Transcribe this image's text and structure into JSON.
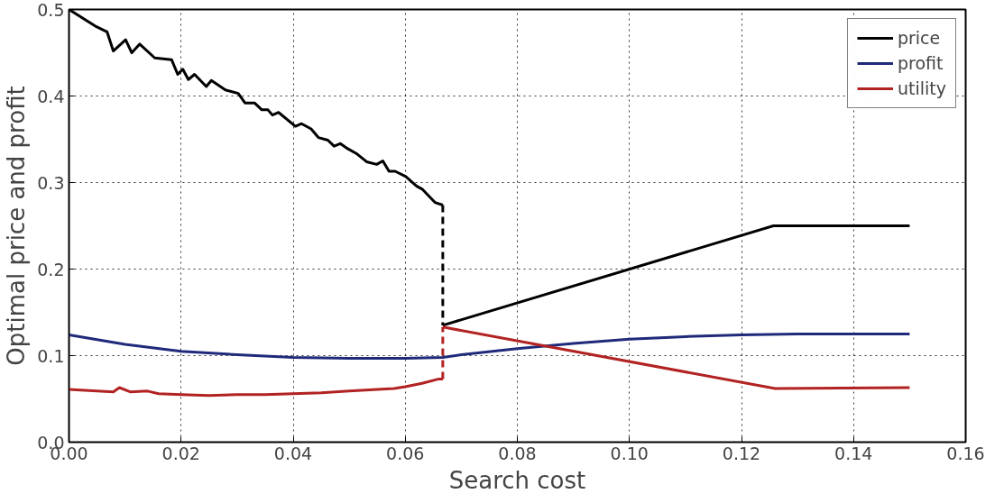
{
  "chart_data": {
    "type": "line",
    "xlabel": "Search cost",
    "ylabel": "Optimal price and profit",
    "xlim": [
      0,
      0.16
    ],
    "ylim": [
      0,
      0.5
    ],
    "xticks": [
      {
        "value": 0,
        "label": "0.00"
      },
      {
        "value": 0.02,
        "label": "0.02"
      },
      {
        "value": 0.04,
        "label": "0.04"
      },
      {
        "value": 0.06,
        "label": "0.06"
      },
      {
        "value": 0.08,
        "label": "0.08"
      },
      {
        "value": 0.1,
        "label": "0.10"
      },
      {
        "value": 0.12,
        "label": "0.12"
      },
      {
        "value": 0.14,
        "label": "0.14"
      },
      {
        "value": 0.16,
        "label": "0.16"
      }
    ],
    "yticks": [
      {
        "value": 0,
        "label": "0.0"
      },
      0.1,
      0.2,
      0.3,
      0.4,
      0.5
    ],
    "grid": true,
    "legend": "top right",
    "line_style": "solid",
    "series": [
      {
        "name": "price",
        "color": "#000000",
        "x": [
          0.0,
          0.0049,
          0.0068,
          0.0079,
          0.0101,
          0.0112,
          0.0126,
          0.0153,
          0.0183,
          0.0194,
          0.0203,
          0.0213,
          0.0224,
          0.0245,
          0.0254,
          0.0279,
          0.0302,
          0.0314,
          0.0331,
          0.0344,
          0.0355,
          0.0363,
          0.0374,
          0.0404,
          0.0415,
          0.0432,
          0.0445,
          0.0462,
          0.0473,
          0.0484,
          0.0495,
          0.0514,
          0.0531,
          0.0549,
          0.056,
          0.0571,
          0.0582,
          0.0601,
          0.062,
          0.0631,
          0.0653,
          0.0667
        ],
        "values": [
          0.5,
          0.48,
          0.474,
          0.452,
          0.465,
          0.45,
          0.46,
          0.444,
          0.442,
          0.425,
          0.431,
          0.419,
          0.425,
          0.411,
          0.418,
          0.407,
          0.403,
          0.392,
          0.392,
          0.384,
          0.384,
          0.378,
          0.381,
          0.365,
          0.368,
          0.362,
          0.352,
          0.349,
          0.342,
          0.345,
          0.34,
          0.333,
          0.324,
          0.321,
          0.325,
          0.313,
          0.313,
          0.307,
          0.296,
          0.292,
          0.277,
          0.274
        ]
      },
      {
        "name": "profit",
        "color": "#1f2a7a",
        "x": [
          0.0,
          0.01,
          0.02,
          0.03,
          0.04,
          0.05,
          0.06,
          0.0667,
          0.07,
          0.08,
          0.09,
          0.1,
          0.11,
          0.12,
          0.13,
          0.15
        ],
        "values": [
          0.124,
          0.113,
          0.105,
          0.101,
          0.098,
          0.097,
          0.097,
          0.098,
          0.101,
          0.108,
          0.114,
          0.119,
          0.122,
          0.124,
          0.125,
          0.125
        ]
      },
      {
        "name": "utility",
        "color": "#b22222",
        "x": [
          0.0,
          0.005,
          0.0079,
          0.009,
          0.011,
          0.014,
          0.016,
          0.02,
          0.025,
          0.03,
          0.035,
          0.04,
          0.045,
          0.05,
          0.055,
          0.058,
          0.06,
          0.063,
          0.066,
          0.0667
        ],
        "values": [
          0.061,
          0.059,
          0.058,
          0.063,
          0.058,
          0.059,
          0.056,
          0.055,
          0.054,
          0.055,
          0.055,
          0.056,
          0.057,
          0.059,
          0.061,
          0.062,
          0.064,
          0.068,
          0.073,
          0.073
        ]
      },
      {
        "color": "#000000",
        "line_style": "dashed",
        "x": [
          0.0667,
          0.0667
        ],
        "values": [
          0.274,
          0.135
        ]
      },
      {
        "color": "#b22222",
        "line_style": "dashed",
        "x": [
          0.0667,
          0.0667
        ],
        "values": [
          0.073,
          0.133
        ]
      },
      {
        "color": "#000000",
        "x": [
          0.0667,
          0.1257,
          0.15
        ],
        "values": [
          0.135,
          0.25,
          0.25
        ]
      },
      {
        "color": "#b22222",
        "x": [
          0.0667,
          0.126,
          0.15
        ],
        "values": [
          0.133,
          0.062,
          0.063
        ]
      }
    ]
  }
}
